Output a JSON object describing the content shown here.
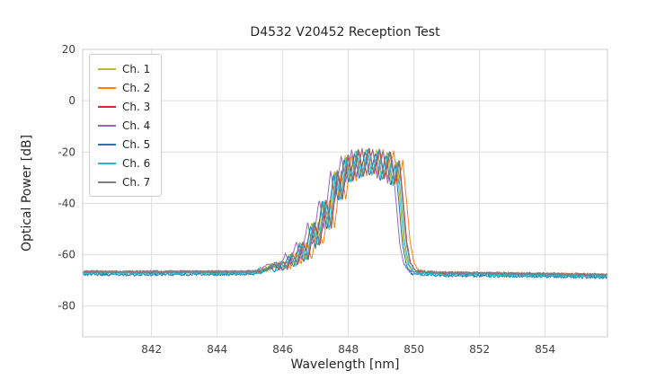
{
  "chart_data": {
    "type": "line",
    "title": "D4532 V20452 Reception Test",
    "xlabel": "Wavelength [nm]",
    "ylabel": "Optical Power [dB]",
    "xlim": [
      839.9,
      855.9
    ],
    "ylim": [
      -92,
      20
    ],
    "xticks": [
      842,
      844,
      846,
      848,
      850,
      852,
      854
    ],
    "yticks": [
      20,
      0,
      -20,
      -40,
      -60,
      -80
    ],
    "grid": true,
    "legend_position": "upper left",
    "noise_floor_db": -67,
    "peak_power_db": -19,
    "signal_band_nm": [
      845.5,
      850.0
    ],
    "envelope": [
      [
        839.9,
        -66.8
      ],
      [
        841.5,
        -66.9
      ],
      [
        843.0,
        -66.8
      ],
      [
        844.5,
        -66.8
      ],
      [
        845.1,
        -66.7
      ],
      [
        845.35,
        -66.3
      ],
      [
        845.55,
        -65.0
      ],
      [
        845.68,
        -63.6
      ],
      [
        845.8,
        -65.6
      ],
      [
        845.93,
        -62.7
      ],
      [
        846.06,
        -65.3
      ],
      [
        846.22,
        -59.6
      ],
      [
        846.38,
        -63.8
      ],
      [
        846.55,
        -55.0
      ],
      [
        846.7,
        -62.0
      ],
      [
        846.9,
        -47.5
      ],
      [
        847.05,
        -56.5
      ],
      [
        847.25,
        -38.5
      ],
      [
        847.4,
        -49.5
      ],
      [
        847.6,
        -27.5
      ],
      [
        847.74,
        -38.5
      ],
      [
        847.92,
        -21.5
      ],
      [
        848.06,
        -31.5
      ],
      [
        848.24,
        -19.3
      ],
      [
        848.38,
        -29.5
      ],
      [
        848.56,
        -18.8
      ],
      [
        848.7,
        -28.5
      ],
      [
        848.88,
        -19.2
      ],
      [
        849.02,
        -30.5
      ],
      [
        849.2,
        -19.8
      ],
      [
        849.34,
        -32.5
      ],
      [
        849.48,
        -23.5
      ],
      [
        849.6,
        -40.0
      ],
      [
        849.7,
        -55.0
      ],
      [
        849.82,
        -63.5
      ],
      [
        849.98,
        -66.5
      ],
      [
        850.6,
        -67.2
      ],
      [
        852.0,
        -67.4
      ],
      [
        853.5,
        -67.6
      ],
      [
        855.9,
        -68.0
      ]
    ],
    "series": [
      {
        "name": "Ch. 1",
        "color": "#bcbd22",
        "x_offset_nm": -0.02,
        "y_offset_db": 0.0
      },
      {
        "name": "Ch. 2",
        "color": "#ff7f0e",
        "x_offset_nm": 0.18,
        "y_offset_db": 0.2
      },
      {
        "name": "Ch. 3",
        "color": "#d62728",
        "x_offset_nm": 0.08,
        "y_offset_db": 0.0
      },
      {
        "name": "Ch. 4",
        "color": "#9467bd",
        "x_offset_nm": -0.14,
        "y_offset_db": 0.1
      },
      {
        "name": "Ch. 5",
        "color": "#1f77b4",
        "x_offset_nm": -0.05,
        "y_offset_db": -0.9
      },
      {
        "name": "Ch. 6",
        "color": "#17becf",
        "x_offset_nm": 0.02,
        "y_offset_db": -0.4
      },
      {
        "name": "Ch. 7",
        "color": "#7f7f7f",
        "x_offset_nm": 0.06,
        "y_offset_db": 0.3
      }
    ],
    "style": {
      "grid_color": "#dedede",
      "frame_color": "#cccccc",
      "tick_label_color": "#404040"
    }
  }
}
